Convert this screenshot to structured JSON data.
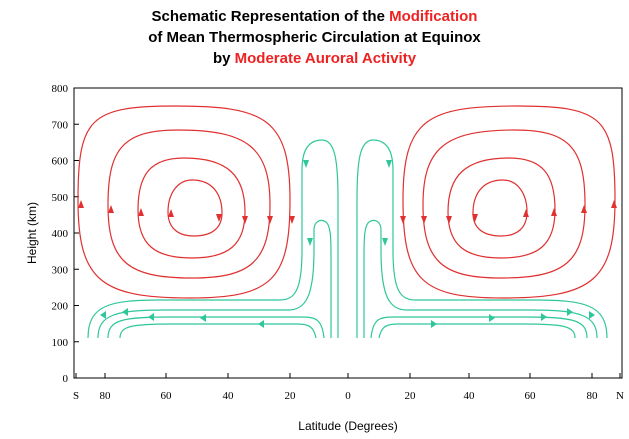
{
  "title": {
    "line1_a": "Schematic Representation of the ",
    "line1_b": "Modification",
    "line2": "of Mean Thermospheric Circulation at Equinox",
    "line3_a": "by ",
    "line3_b": "Moderate Auroral Activity"
  },
  "axes": {
    "ylabel": "Height (km)",
    "xlabel": "Latitude (Degrees)",
    "y_ticks": [
      "0",
      "100",
      "200",
      "300",
      "400",
      "500",
      "600",
      "700",
      "800"
    ],
    "x_ticks": [
      "S",
      "80",
      "60",
      "40",
      "20",
      "0",
      "20",
      "40",
      "60",
      "80",
      "N"
    ]
  },
  "colors": {
    "title_highlight": "#ee2222",
    "aurora_cells": "#e03030",
    "background_flow": "#2fc79a"
  }
}
